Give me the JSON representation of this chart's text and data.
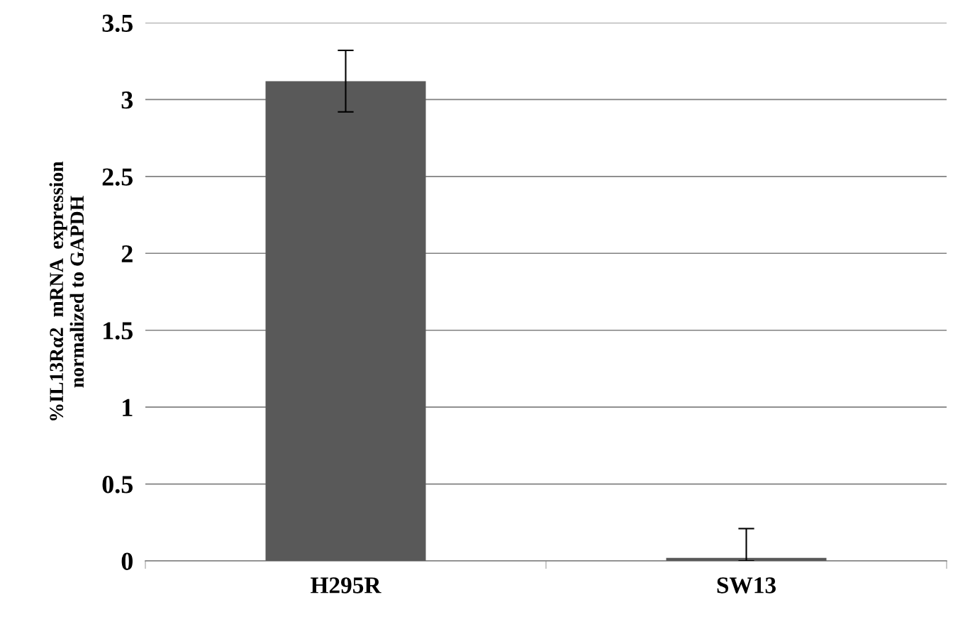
{
  "chart_data": {
    "type": "bar",
    "ylabel": "%IL13Rα2  mRNA  expression\nnormalized to GAPDH",
    "categories": [
      "H295R",
      "SW13"
    ],
    "series": [
      {
        "color": "#595959",
        "values": [
          3.12,
          0.02
        ],
        "errors": [
          0.2,
          [
            0,
            0.21
          ]
        ]
      }
    ],
    "ylim": [
      0,
      3.5
    ],
    "yticks": [
      0,
      0.5,
      1,
      1.5,
      2,
      2.5,
      3,
      3.5
    ],
    "grid": "y",
    "legend": false
  }
}
